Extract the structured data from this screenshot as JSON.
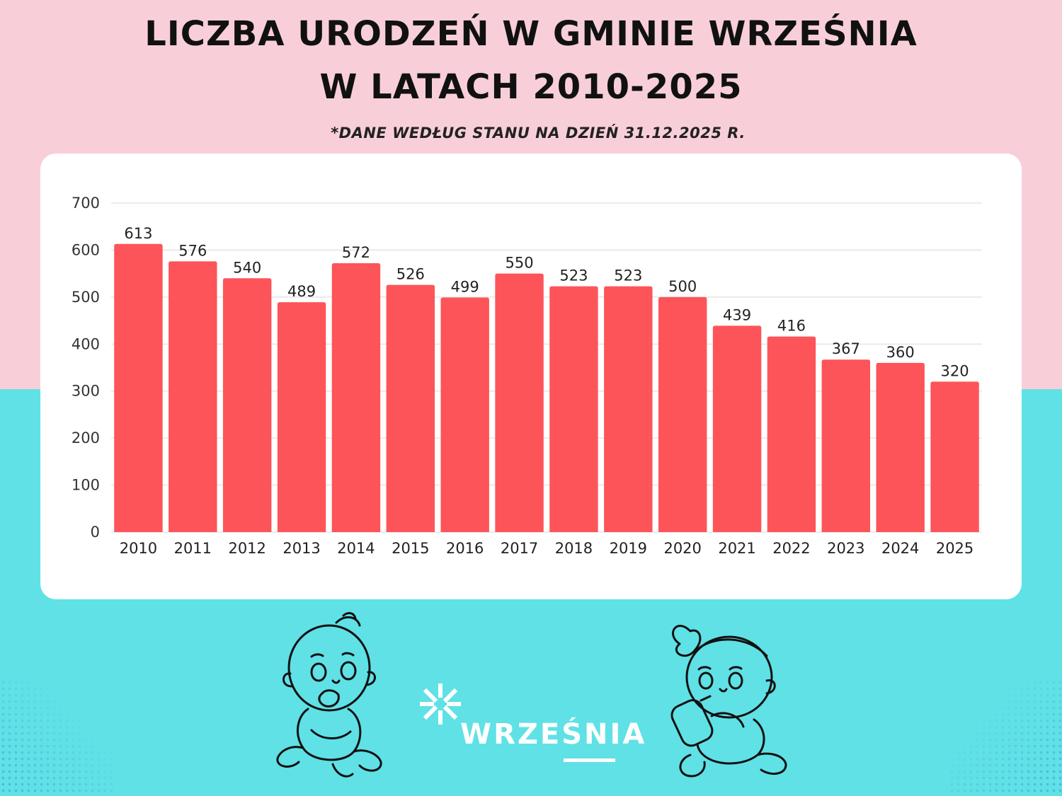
{
  "header": {
    "title_line1": "LICZBA URODZEŃ W GMINIE WRZEŚNIA",
    "title_line2": "W LATACH 2010-2025",
    "note": "*DANE WEDŁUG STANU NA DZIEŃ 31.12.2025 R."
  },
  "logo": {
    "text": "WRZEŚNIA"
  },
  "colors": {
    "bar": "#fd5459",
    "top_background": "#f8cfd9",
    "bottom_background": "#5fe1e6",
    "card": "#ffffff",
    "grid": "#d9d9d9"
  },
  "chart_data": {
    "type": "bar",
    "title": "LICZBA URODZEŃ W GMINIE WRZEŚNIA W LATACH 2010-2025",
    "subtitle": "*DANE WEDŁUG STANU NA DZIEŃ 31.12.2025 R.",
    "xlabel": "",
    "ylabel": "",
    "categories": [
      "2010",
      "2011",
      "2012",
      "2013",
      "2014",
      "2015",
      "2016",
      "2017",
      "2018",
      "2019",
      "2020",
      "2021",
      "2022",
      "2023",
      "2024",
      "2025"
    ],
    "values": [
      613,
      576,
      540,
      489,
      572,
      526,
      499,
      550,
      523,
      523,
      500,
      439,
      416,
      367,
      360,
      320
    ],
    "ylim": [
      0,
      700
    ],
    "yticks": [
      0,
      100,
      200,
      300,
      400,
      500,
      600,
      700
    ],
    "grid": true,
    "data_labels": true,
    "legend": "none"
  }
}
